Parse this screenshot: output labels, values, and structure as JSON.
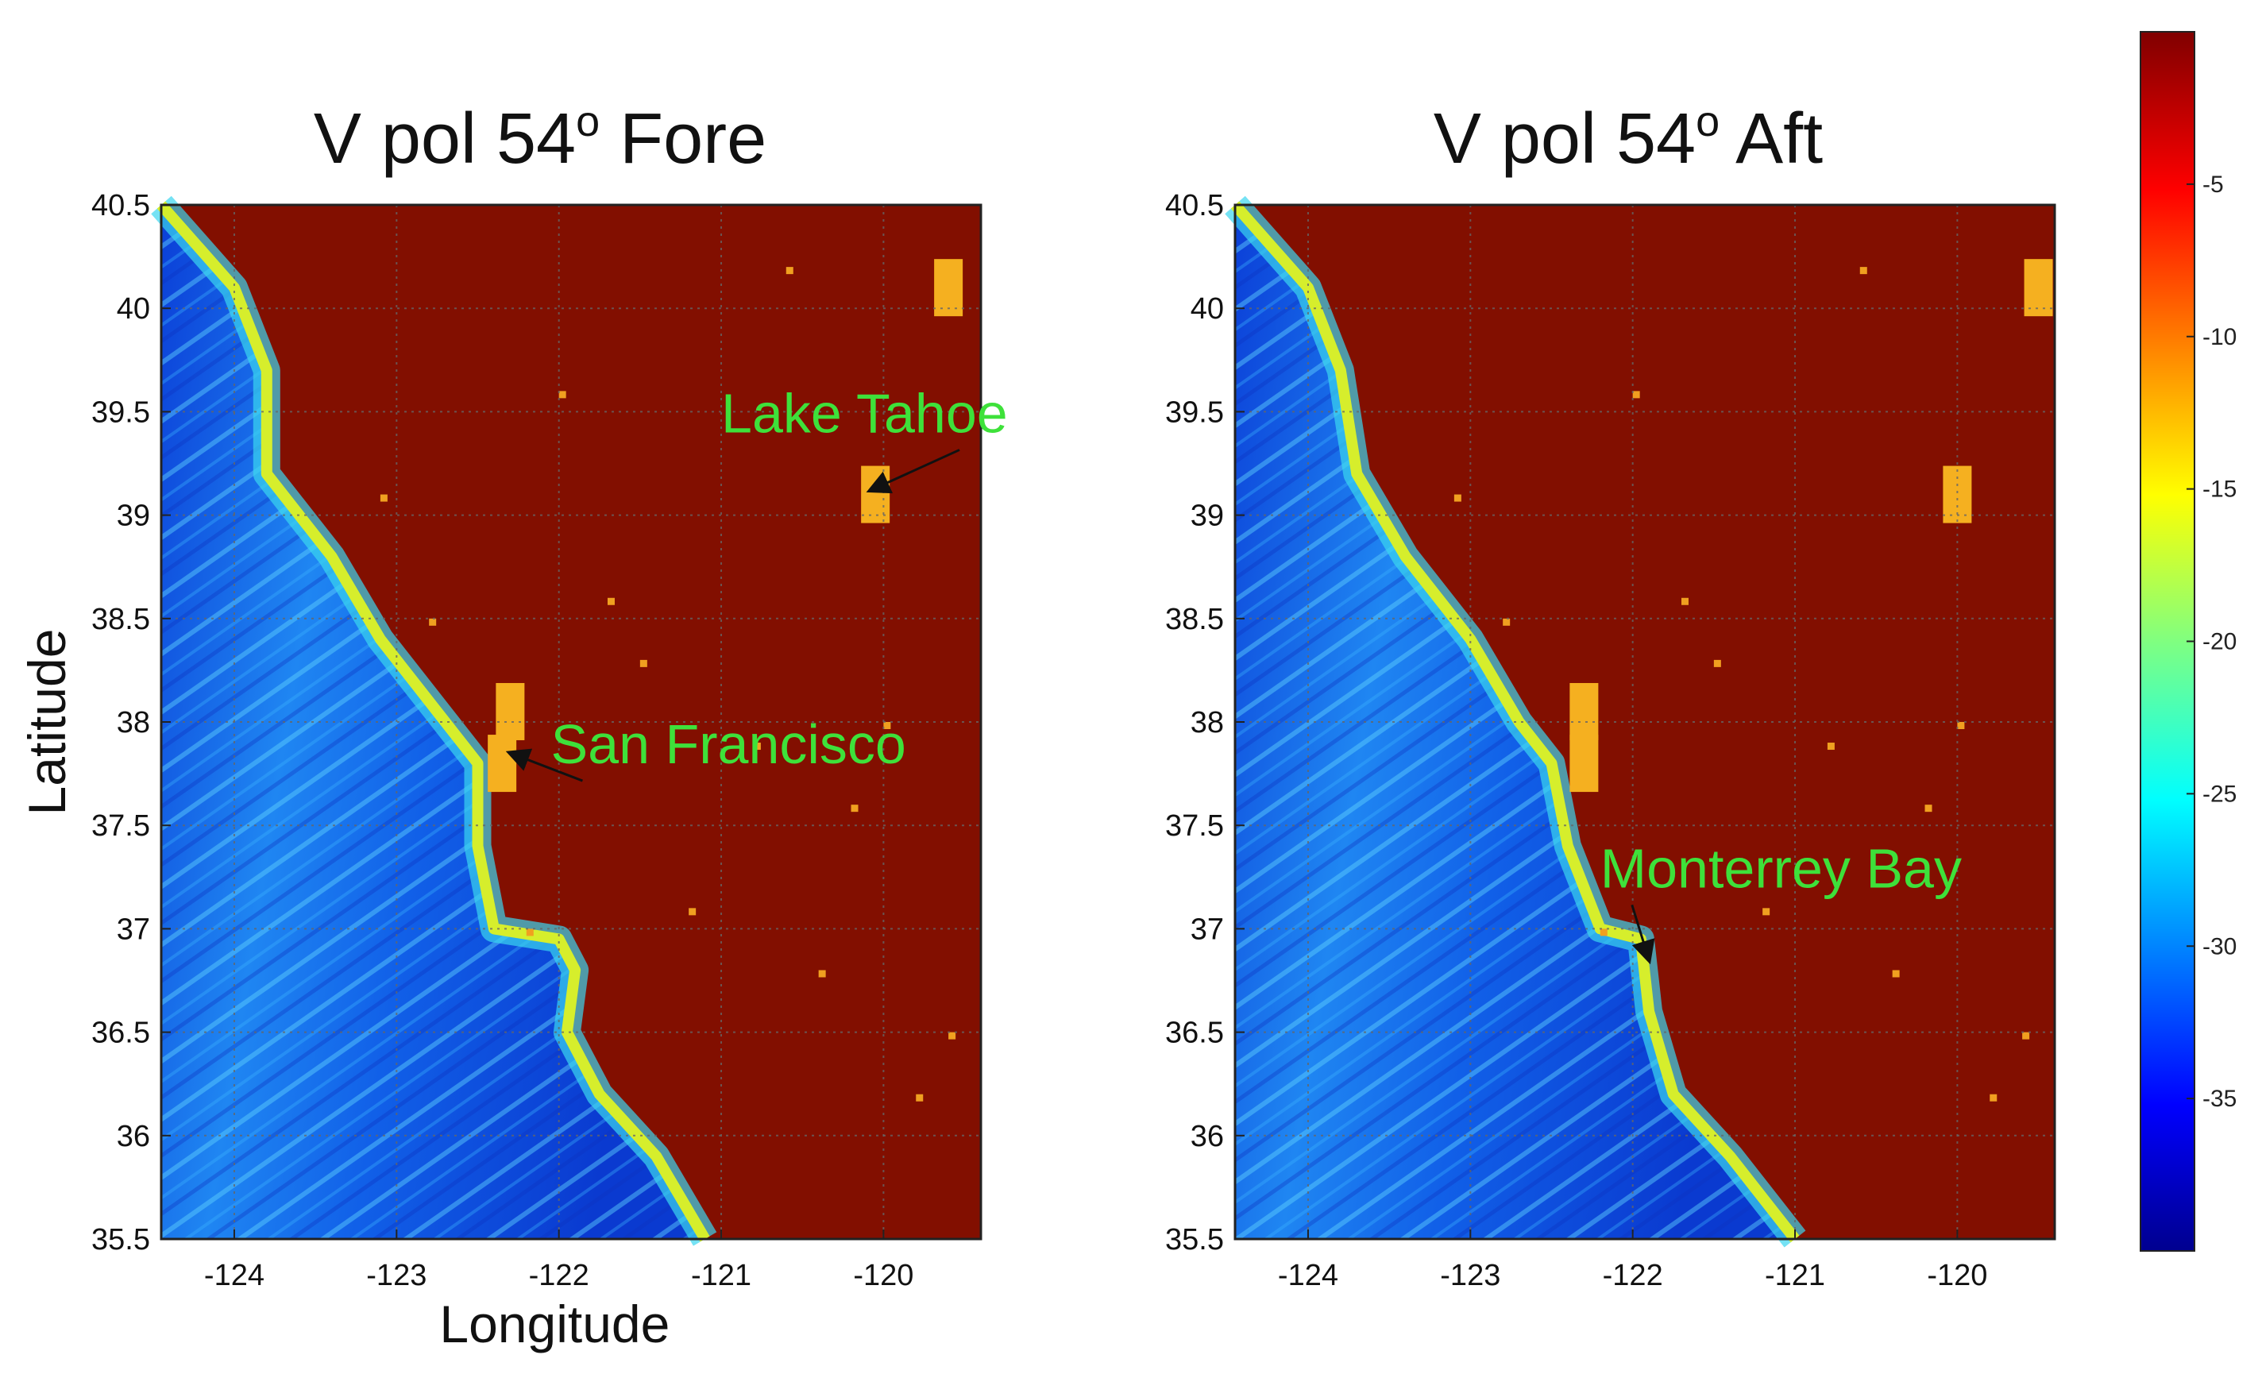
{
  "chart_data": {
    "type": "heatmap",
    "panels": [
      {
        "title_base": "V pol 54",
        "title_sup": "o",
        "title_tail": " Fore",
        "xlabel": "Longitude",
        "ylabel": "Latitude",
        "xlim": [
          -124.45,
          -119.4
        ],
        "ylim": [
          35.5,
          40.5
        ],
        "xticks": [
          -124,
          -123,
          -122,
          -121,
          -120
        ],
        "yticks": [
          35.5,
          36,
          36.5,
          37,
          37.5,
          38,
          38.5,
          39,
          39.5,
          40,
          40.5
        ],
        "grid": true,
        "coast": [
          [
            -124.45,
            40.5
          ],
          [
            -124.0,
            40.1
          ],
          [
            -123.8,
            39.7
          ],
          [
            -123.8,
            39.2
          ],
          [
            -123.4,
            38.8
          ],
          [
            -123.1,
            38.4
          ],
          [
            -122.7,
            38.0
          ],
          [
            -122.5,
            37.8
          ],
          [
            -122.5,
            37.4
          ],
          [
            -122.4,
            37.0
          ],
          [
            -122.0,
            36.95
          ],
          [
            -121.9,
            36.8
          ],
          [
            -121.95,
            36.5
          ],
          [
            -121.75,
            36.2
          ],
          [
            -121.4,
            35.9
          ],
          [
            -121.1,
            35.5
          ]
        ],
        "lakes": [
          [
            -120.05,
            39.1
          ],
          [
            -122.35,
            37.8
          ],
          [
            -122.3,
            38.05
          ],
          [
            -119.6,
            40.1
          ]
        ],
        "annotations": [
          {
            "text": "Lake Tahoe",
            "x": -121.0,
            "y": 39.4,
            "arrow_to": [
              -120.08,
              39.12
            ]
          },
          {
            "text": "San Francisco",
            "x": -122.05,
            "y": 37.8,
            "arrow_to": [
              -122.3,
              37.85
            ]
          }
        ]
      },
      {
        "title_base": "V pol 54",
        "title_sup": "o",
        "title_tail": " Aft",
        "xlabel": "",
        "ylabel": "",
        "xlim": [
          -124.45,
          -119.4
        ],
        "ylim": [
          35.5,
          40.5
        ],
        "xticks": [
          -124,
          -123,
          -122,
          -121,
          -120
        ],
        "yticks": [
          35.5,
          36,
          36.5,
          37,
          37.5,
          38,
          38.5,
          39,
          39.5,
          40,
          40.5
        ],
        "grid": true,
        "coast": [
          [
            -124.45,
            40.5
          ],
          [
            -124.0,
            40.1
          ],
          [
            -123.8,
            39.7
          ],
          [
            -123.7,
            39.2
          ],
          [
            -123.4,
            38.8
          ],
          [
            -123.0,
            38.4
          ],
          [
            -122.7,
            38.0
          ],
          [
            -122.5,
            37.8
          ],
          [
            -122.4,
            37.4
          ],
          [
            -122.2,
            37.0
          ],
          [
            -121.95,
            36.95
          ],
          [
            -121.9,
            36.6
          ],
          [
            -121.75,
            36.2
          ],
          [
            -121.4,
            35.9
          ],
          [
            -121.0,
            35.5
          ]
        ],
        "lakes": [
          [
            -120.0,
            39.1
          ],
          [
            -122.3,
            37.8
          ],
          [
            -122.3,
            38.05
          ],
          [
            -119.5,
            40.1
          ]
        ],
        "annotations": [
          {
            "text": "Monterrey Bay",
            "x": -122.2,
            "y": 37.2,
            "arrow_to": [
              -121.9,
              36.85
            ]
          }
        ]
      }
    ],
    "colorbar": {
      "ticks": [
        -5,
        -10,
        -15,
        -20,
        -25,
        -30,
        -35
      ],
      "range": [
        -40,
        0
      ],
      "colormap": "jet"
    }
  },
  "colors": {
    "land": "#820f00",
    "ocean_deep": "#0a3fd6",
    "ocean_mid": "#1680f0",
    "ocean_light": "#38c0f5",
    "coast_edge": "#d6ee2c",
    "lake": "#f5b020",
    "annotation": "#3ee13a",
    "grid": "#666666"
  }
}
